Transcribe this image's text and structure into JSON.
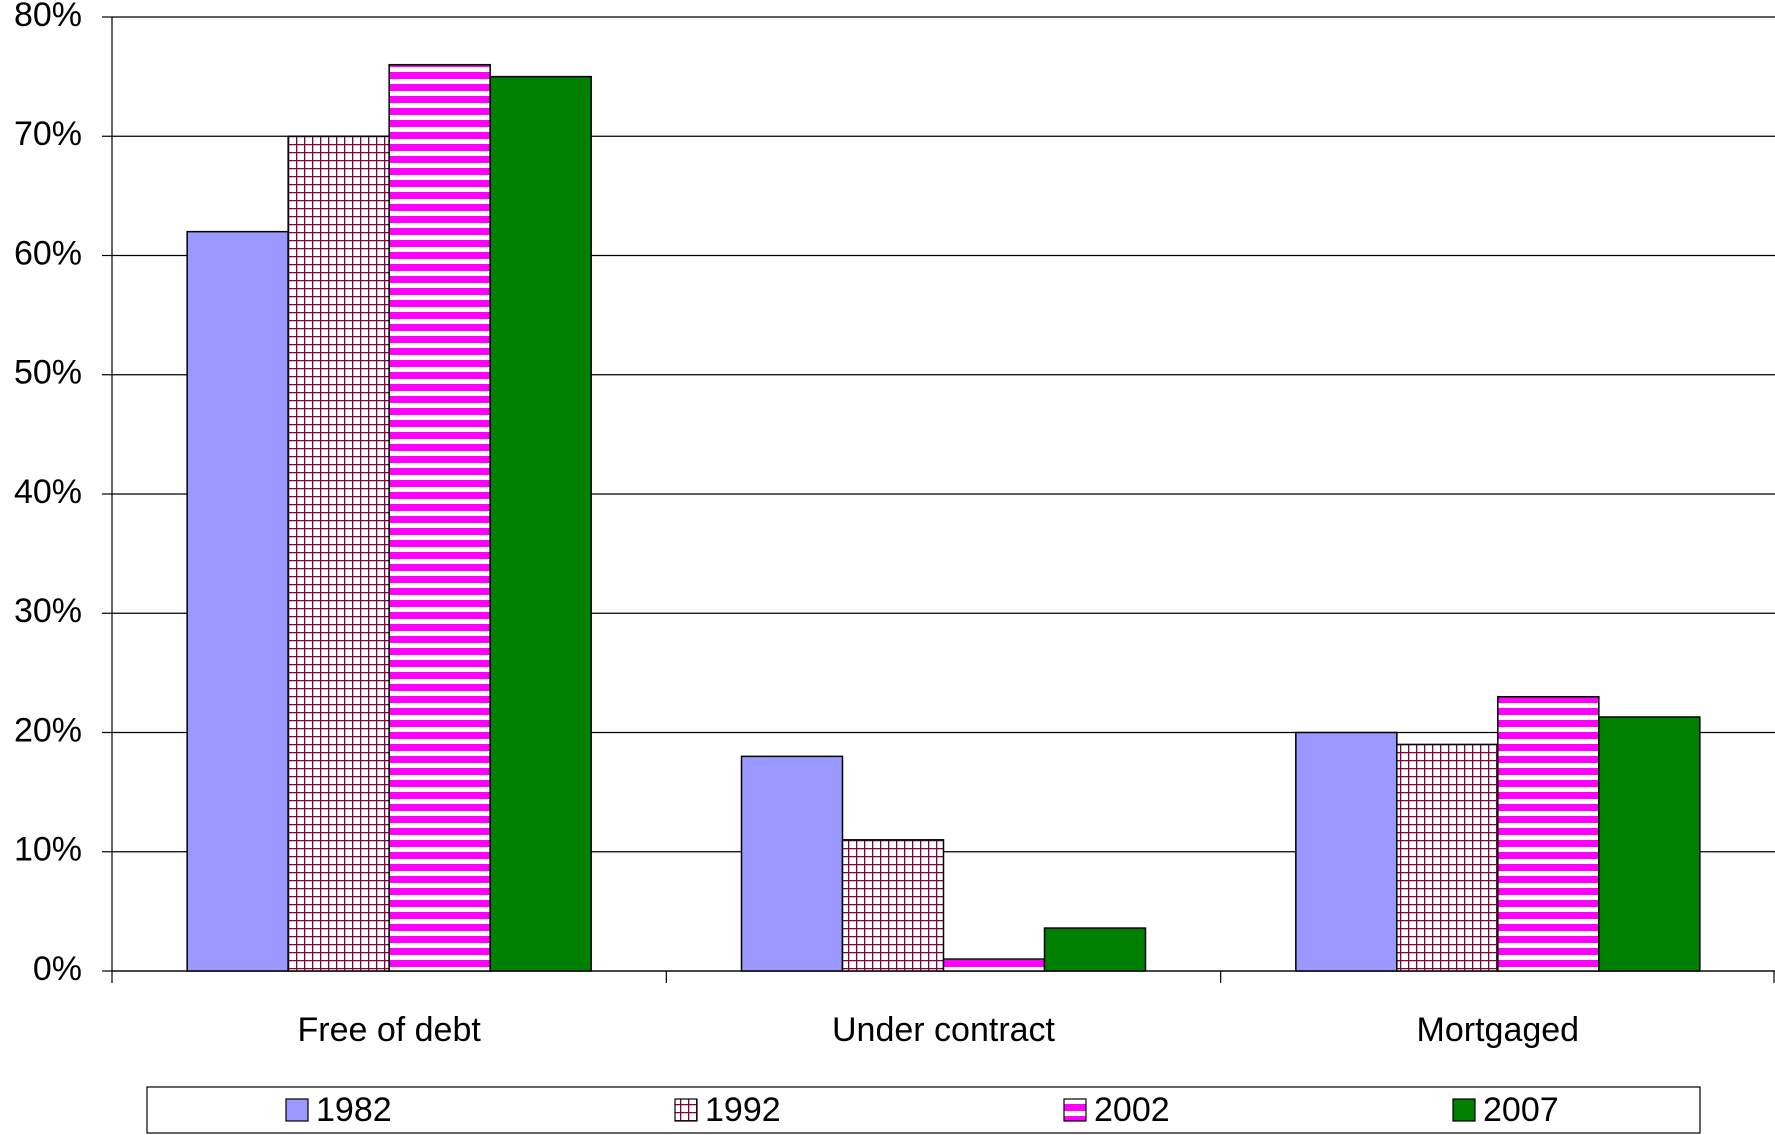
{
  "chart_data": {
    "type": "bar",
    "categories": [
      "Free of debt",
      "Under contract",
      "Mortgaged"
    ],
    "series": [
      {
        "name": "1982",
        "color": "#9999ff",
        "pattern": "solid",
        "values": [
          62,
          18,
          20
        ]
      },
      {
        "name": "1992",
        "color": "#800040",
        "pattern": "grid",
        "values": [
          70,
          11,
          19
        ]
      },
      {
        "name": "2002",
        "color": "#ff00ff",
        "pattern": "hstripe",
        "values": [
          76,
          1,
          23
        ]
      },
      {
        "name": "2007",
        "color": "#008000",
        "pattern": "solid",
        "values": [
          75,
          3.6,
          21.3
        ]
      }
    ],
    "ylim": [
      0,
      80
    ],
    "yticks": [
      {
        "value": 0,
        "label": "0%"
      },
      {
        "value": 10,
        "label": "10%"
      },
      {
        "value": 20,
        "label": "20%"
      },
      {
        "value": 30,
        "label": "30%"
      },
      {
        "value": 40,
        "label": "40%"
      },
      {
        "value": 50,
        "label": "50%"
      },
      {
        "value": 60,
        "label": "60%"
      },
      {
        "value": 70,
        "label": "70%"
      },
      {
        "value": 80,
        "label": "80%"
      }
    ],
    "grid": true,
    "legend": "bottom"
  }
}
